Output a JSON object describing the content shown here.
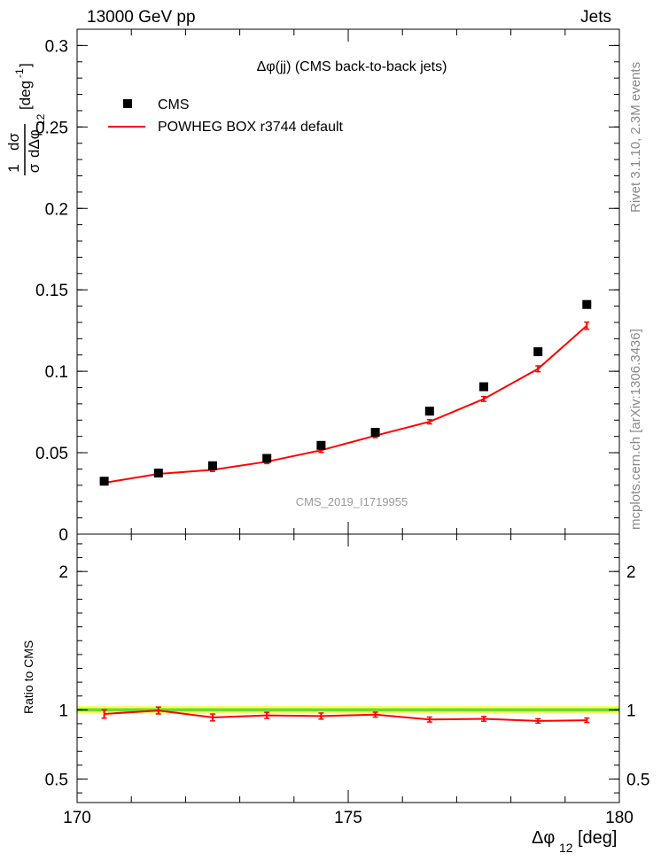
{
  "header": {
    "left_label": "13000 GeV pp",
    "right_label": "Jets"
  },
  "side_text": {
    "rivet": "Rivet 3.1.10,  2.3M events",
    "mcplots": "mcplots.cern.ch [arXiv:1306.3436]"
  },
  "main_panel": {
    "title": "Δφ(jj) (CMS back-to-back jets)",
    "watermark": "CMS_2019_I1719955",
    "ylabel_num": "1",
    "ylabel_frac_num": "dσ",
    "ylabel_den_sigma": "σ",
    "ylabel_den_d": "dΔφ",
    "ylabel_den_sub": "12",
    "ylabel_units": "[deg",
    "ylabel_units_sup": "-1",
    "ylabel_units_close": "]",
    "legend": [
      {
        "label": "CMS",
        "color": "#000000",
        "marker": "square"
      },
      {
        "label": "POWHEG BOX r3744 default",
        "color": "#ff0000",
        "marker": "line"
      }
    ]
  },
  "ratio_panel": {
    "ylabel": "Ratio to CMS"
  },
  "x_axis": {
    "label_phi": "Δφ",
    "label_sub": "12",
    "label_units": "[deg]"
  },
  "chart_data": [
    {
      "type": "scatter",
      "panel": "main",
      "x": [
        170.5,
        171.5,
        172.5,
        173.5,
        174.5,
        175.5,
        176.5,
        177.5,
        178.5,
        179.4
      ],
      "xlim": [
        170,
        180
      ],
      "ylim": [
        0,
        0.31
      ],
      "xticks": [
        170,
        175,
        180
      ],
      "yticks": [
        0,
        0.05,
        0.1,
        0.15,
        0.2,
        0.25,
        0.3
      ],
      "ytick_labels": [
        "0",
        "0.05",
        "0.1",
        "0.15",
        "0.2",
        "0.25",
        "0.3"
      ],
      "series": [
        {
          "name": "CMS",
          "color": "#000000",
          "style": "marker",
          "values": [
            0.0325,
            0.0375,
            0.042,
            0.0465,
            0.0545,
            0.0625,
            0.0755,
            0.0905,
            0.112,
            0.141
          ]
        },
        {
          "name": "POWHEG BOX r3744 default",
          "color": "#ff0000",
          "style": "line",
          "values": [
            0.0315,
            0.037,
            0.0395,
            0.0445,
            0.0515,
            0.0605,
            0.069,
            0.083,
            0.1015,
            0.128
          ],
          "errors": [
            0.001,
            0.001,
            0.001,
            0.0012,
            0.0013,
            0.0013,
            0.0013,
            0.0015,
            0.0018,
            0.0022
          ]
        }
      ]
    },
    {
      "type": "line",
      "panel": "ratio",
      "x": [
        170.5,
        171.5,
        172.5,
        173.5,
        174.5,
        175.5,
        176.5,
        177.5,
        178.5,
        179.4
      ],
      "xlim": [
        170,
        180
      ],
      "ylim": [
        0.33,
        2.27
      ],
      "yticks": [
        0.5,
        1,
        2
      ],
      "ytick_labels": [
        "0.5",
        "1",
        "2"
      ],
      "xtick_labels": [
        "170",
        "175",
        "180"
      ],
      "band": {
        "center": 1.0,
        "outer_half_width": 0.028,
        "inner_half_width": 0.012,
        "outer_color": "#ffff66",
        "inner_color": "#66dd33"
      },
      "series": [
        {
          "name": "POWHEG BOX r3744 default",
          "color": "#ff0000",
          "values": [
            0.97,
            0.995,
            0.945,
            0.96,
            0.955,
            0.965,
            0.93,
            0.935,
            0.92,
            0.925
          ],
          "errors": [
            0.03,
            0.025,
            0.025,
            0.022,
            0.022,
            0.018,
            0.018,
            0.017,
            0.016,
            0.016
          ]
        }
      ]
    }
  ]
}
